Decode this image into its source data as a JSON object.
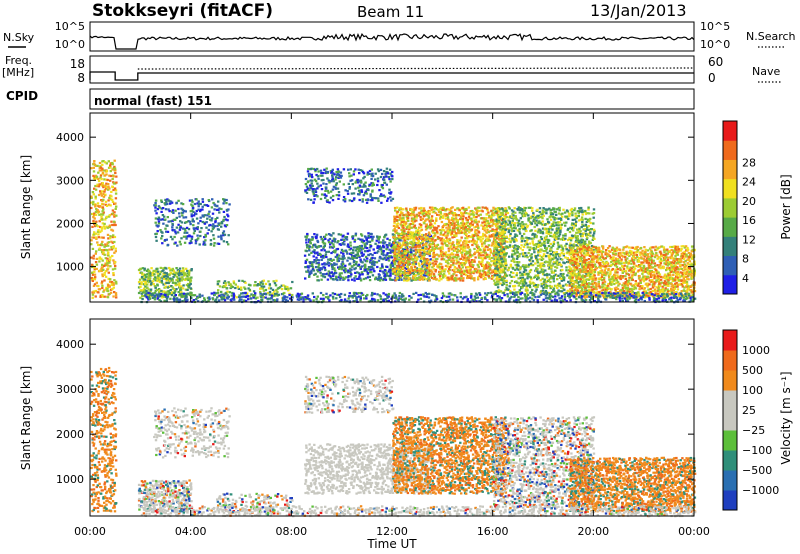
{
  "header": {
    "station": "Stokkseyri (fitACF)",
    "beam": "Beam 11",
    "date": "13/Jan/2013"
  },
  "strips": {
    "nsky_label": "N.Sky",
    "nsky_tick_top": "10^5",
    "nsky_tick_bottom": "10^0",
    "nsearch_label": "N.Search",
    "nsearch_tick_top": "10^5",
    "nsearch_tick_bottom": "10^0",
    "freq_label": "Freq.",
    "freq_unit": "[MHz]",
    "freq_tick_top": "18",
    "freq_tick_bottom": "8",
    "nave_label": "Nave",
    "nave_tick_top": "60",
    "nave_tick_bottom": "0",
    "cpid_label": "CPID",
    "cpid_value": "normal (fast) 151"
  },
  "chart_data": [
    {
      "type": "heatmap",
      "panel": "power",
      "ylabel": "Slant Range [km]",
      "yticks": [
        "1000",
        "2000",
        "3000",
        "4000"
      ],
      "ylim": [
        180,
        4560
      ],
      "colorbar": {
        "label": "Power [dB]",
        "ticks": [
          "4",
          "8",
          "12",
          "16",
          "20",
          "24",
          "28"
        ],
        "range": [
          0,
          30
        ],
        "colors": [
          "#1f1fe6",
          "#2f5fb5",
          "#34807a",
          "#57aa47",
          "#9ccc33",
          "#f0e020",
          "#f5a623",
          "#ef6a1c",
          "#e81a1a"
        ]
      }
    },
    {
      "type": "heatmap",
      "panel": "velocity",
      "ylabel": "Slant Range [km]",
      "yticks": [
        "1000",
        "2000",
        "3000",
        "4000"
      ],
      "ylim": [
        180,
        4560
      ],
      "xlabel": "Time UT",
      "xticks": [
        "00:00",
        "04:00",
        "08:00",
        "12:00",
        "16:00",
        "20:00",
        "00:00"
      ],
      "colorbar": {
        "label": "Velocity [m s⁻¹]",
        "ticks": [
          "1000",
          "500",
          "100",
          "25",
          "−25",
          "−100",
          "−500",
          "−1000"
        ],
        "colors": [
          "#1f3fbf",
          "#2a6fb2",
          "#2f8f7a",
          "#5cbf3a",
          "#c8c8c0",
          "#c8c8c0",
          "#f08a1c",
          "#ef6a1c",
          "#e81a1a"
        ]
      }
    }
  ],
  "colors": {
    "axis": "#000000",
    "ground_scatter": "#c8c8c0"
  }
}
